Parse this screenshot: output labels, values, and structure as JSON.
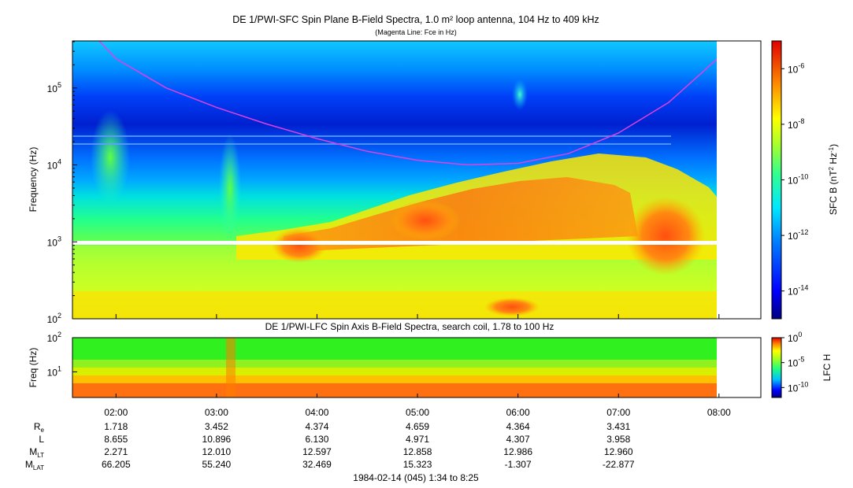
{
  "titles": {
    "main": "DE 1/PWI-SFC  Spin Plane B-Field Spectra, 1.0 m² loop antenna, 104 Hz to 409 kHz",
    "sub": "(Magenta Line: Fce in Hz)",
    "lower": "DE 1/PWI-LFC  Spin Axis B-Field Spectra, search coil, 1.78 to 100 Hz"
  },
  "colors": {
    "fce_line": "#e040e0",
    "background": "#ffffff",
    "frame": "#000000"
  },
  "chart_data": [
    {
      "type": "heatmap",
      "title": "DE 1/PWI-SFC  Spin Plane B-Field Spectra, 1.0 m² loop antenna, 104 Hz to 409 kHz",
      "subtitle": "(Magenta Line: Fce in Hz)",
      "ylabel": "Frequency (Hz)",
      "yscale": "log",
      "ylim": [
        100,
        409000
      ],
      "yticks": [
        {
          "value": 100,
          "base": "10",
          "exp": "2"
        },
        {
          "value": 1000,
          "base": "10",
          "exp": "3"
        },
        {
          "value": 10000,
          "base": "10",
          "exp": "4"
        },
        {
          "value": 100000,
          "base": "10",
          "exp": "5"
        }
      ],
      "xlim": [
        "01:34",
        "08:25"
      ],
      "xticks": [
        "02:00",
        "03:00",
        "04:00",
        "05:00",
        "06:00",
        "07:00",
        "08:00"
      ],
      "colorbar": {
        "label_main": "SFC B (nT",
        "label_exp1": "2",
        "label_mid": " Hz",
        "label_exp2": "-1",
        "label_end": ")",
        "scale": "log",
        "range": [
          1e-15,
          1e-05
        ],
        "ticks": [
          {
            "value": 1e-06,
            "base": "10",
            "exp": "-6"
          },
          {
            "value": 1e-08,
            "base": "10",
            "exp": "-8"
          },
          {
            "value": 1e-10,
            "base": "10",
            "exp": "-10"
          },
          {
            "value": 1e-12,
            "base": "10",
            "exp": "-12"
          },
          {
            "value": 1e-14,
            "base": "10",
            "exp": "-14"
          }
        ]
      },
      "series": [
        {
          "name": "Fce in Hz",
          "points": [
            {
              "x": "01:50",
              "y": 409000
            },
            {
              "x": "02:00",
              "y": 240000
            },
            {
              "x": "02:30",
              "y": 100000
            },
            {
              "x": "03:00",
              "y": 56000
            },
            {
              "x": "03:30",
              "y": 34000
            },
            {
              "x": "04:00",
              "y": 22000
            },
            {
              "x": "04:30",
              "y": 15000
            },
            {
              "x": "05:00",
              "y": 11500
            },
            {
              "x": "05:30",
              "y": 10000
            },
            {
              "x": "06:00",
              "y": 10500
            },
            {
              "x": "06:30",
              "y": 14000
            },
            {
              "x": "07:00",
              "y": 26000
            },
            {
              "x": "07:30",
              "y": 65000
            },
            {
              "x": "08:00",
              "y": 250000
            }
          ]
        }
      ]
    },
    {
      "type": "heatmap",
      "title": "DE 1/PWI-LFC  Spin Axis B-Field Spectra, search coil, 1.78 to 100 Hz",
      "ylabel": "Freq (Hz)",
      "yscale": "log",
      "ylim": [
        1.78,
        100
      ],
      "yticks": [
        {
          "value": 10,
          "base": "10",
          "exp": "1"
        },
        {
          "value": 100,
          "base": "10",
          "exp": "2"
        }
      ],
      "xlim": [
        "01:34",
        "08:25"
      ],
      "xticks": [
        "02:00",
        "03:00",
        "04:00",
        "05:00",
        "06:00",
        "07:00",
        "08:00"
      ],
      "colorbar": {
        "label": "LFC H",
        "scale": "log",
        "range": [
          1e-12,
          1
        ],
        "ticks": [
          {
            "value": 1,
            "base": "10",
            "exp": "0"
          },
          {
            "value": 1e-05,
            "base": "10",
            "exp": "-5"
          },
          {
            "value": 1e-10,
            "base": "10",
            "exp": "-10"
          }
        ]
      }
    }
  ],
  "ephemeris": {
    "rows": [
      {
        "label": "R",
        "sub": "e",
        "values": [
          "1.718",
          "3.452",
          "4.374",
          "4.659",
          "4.364",
          "3.431"
        ]
      },
      {
        "label": "L",
        "sub": "",
        "values": [
          "8.655",
          "10.896",
          "6.130",
          "4.971",
          "4.307",
          "3.958"
        ]
      },
      {
        "label": "M",
        "sub": "LT",
        "values": [
          "2.271",
          "12.010",
          "12.597",
          "12.858",
          "12.986",
          "12.960"
        ]
      },
      {
        "label": "M",
        "sub": "LAT",
        "values": [
          "66.205",
          "55.240",
          "32.469",
          "15.323",
          "-1.307",
          "-22.877"
        ]
      }
    ],
    "footer": "1984-02-14 (045) 1:34 to 8:25"
  }
}
